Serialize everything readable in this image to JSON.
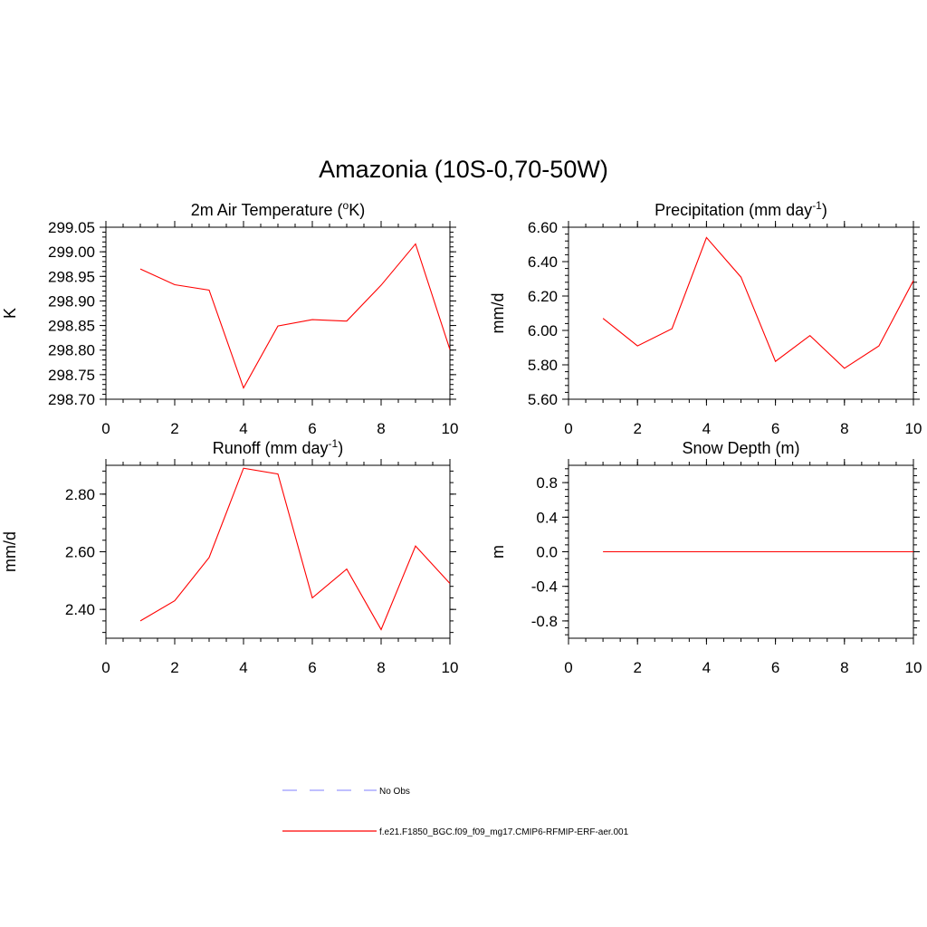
{
  "figure_title": "Amazonia (10S-0,70-50W)",
  "colors": {
    "model": "#ff0000",
    "obs": "#9999ff",
    "axis": "#000000"
  },
  "legend": {
    "obs_label": "No Obs",
    "model_label": "f.e21.F1850_BGC.f09_f09_mg17.CMIP6-RFMIP-ERF-aer.001"
  },
  "chart_data": [
    {
      "id": "temperature",
      "type": "line",
      "title_main": "2m Air Temperature (",
      "title_sup": "o",
      "title_end": "K)",
      "ylabel": "K",
      "xlabel": "",
      "xlim": [
        0,
        10
      ],
      "ylim": [
        298.7,
        299.05
      ],
      "yticks": [
        "298.70",
        "298.75",
        "298.80",
        "298.85",
        "298.90",
        "298.95",
        "299.00",
        "299.05"
      ],
      "xticks": [
        "0",
        "2",
        "4",
        "6",
        "8",
        "10"
      ],
      "x": [
        1,
        2,
        3,
        4,
        5,
        6,
        7,
        8,
        9,
        10
      ],
      "series": [
        {
          "name": "f.e21.F1850_BGC.f09_f09_mg17.CMIP6-RFMIP-ERF-aer.001",
          "values": [
            298.965,
            298.933,
            298.922,
            298.723,
            298.849,
            298.862,
            298.859,
            298.932,
            299.016,
            298.801
          ]
        }
      ]
    },
    {
      "id": "precipitation",
      "type": "line",
      "title_main": "Precipitation (mm day",
      "title_sup": "-1",
      "title_end": ")",
      "ylabel": "mm/d",
      "xlabel": "",
      "xlim": [
        0,
        10
      ],
      "ylim": [
        5.6,
        6.6
      ],
      "yticks": [
        "5.60",
        "5.80",
        "6.00",
        "6.20",
        "6.40",
        "6.60"
      ],
      "xticks": [
        "0",
        "2",
        "4",
        "6",
        "8",
        "10"
      ],
      "x": [
        1,
        2,
        3,
        4,
        5,
        6,
        7,
        8,
        9,
        10
      ],
      "series": [
        {
          "name": "f.e21.F1850_BGC.f09_f09_mg17.CMIP6-RFMIP-ERF-aer.001",
          "values": [
            6.07,
            5.91,
            6.01,
            6.54,
            6.31,
            5.82,
            5.97,
            5.78,
            5.91,
            6.29
          ]
        }
      ]
    },
    {
      "id": "runoff",
      "type": "line",
      "title_main": "Runoff (mm day",
      "title_sup": "-1",
      "title_end": ")",
      "ylabel": "mm/d",
      "xlabel": "",
      "xlim": [
        0,
        10
      ],
      "ylim": [
        2.3,
        2.9
      ],
      "yticks": [
        "2.40",
        "2.60",
        "2.80"
      ],
      "xticks": [
        "0",
        "2",
        "4",
        "6",
        "8",
        "10"
      ],
      "x": [
        1,
        2,
        3,
        4,
        5,
        6,
        7,
        8,
        9,
        10
      ],
      "series": [
        {
          "name": "f.e21.F1850_BGC.f09_f09_mg17.CMIP6-RFMIP-ERF-aer.001",
          "values": [
            2.36,
            2.43,
            2.58,
            2.89,
            2.87,
            2.44,
            2.54,
            2.33,
            2.62,
            2.49
          ]
        }
      ]
    },
    {
      "id": "snow",
      "type": "line",
      "title_main": "Snow Depth (m)",
      "title_sup": "",
      "title_end": "",
      "ylabel": "m",
      "xlabel": "",
      "xlim": [
        0,
        10
      ],
      "ylim": [
        -1.0,
        1.0
      ],
      "yticks": [
        "-0.8",
        "-0.4",
        "0.0",
        "0.4",
        "0.8"
      ],
      "xticks": [
        "0",
        "2",
        "4",
        "6",
        "8",
        "10"
      ],
      "x": [
        1,
        2,
        3,
        4,
        5,
        6,
        7,
        8,
        9,
        10
      ],
      "series": [
        {
          "name": "f.e21.F1850_BGC.f09_f09_mg17.CMIP6-RFMIP-ERF-aer.001",
          "values": [
            0,
            0,
            0,
            0,
            0,
            0,
            0,
            0,
            0,
            0
          ]
        }
      ]
    }
  ]
}
